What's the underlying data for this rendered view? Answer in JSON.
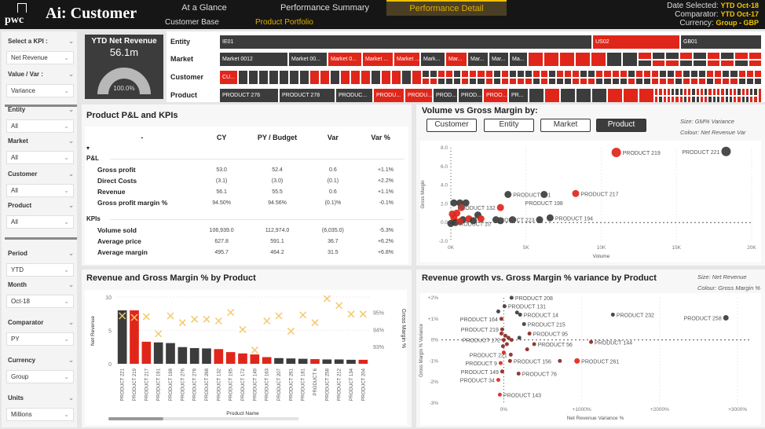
{
  "header": {
    "title": "Ai: Customer",
    "logo": "pwc",
    "tabs": [
      {
        "label": "At a Glance"
      },
      {
        "label": "Performance Summary"
      },
      {
        "label": "Performance Detail",
        "active": true
      }
    ],
    "subtabs": [
      {
        "label": "Customer Base"
      },
      {
        "label": "Product Portfolio",
        "active": true
      }
    ],
    "info": [
      {
        "label": "Date Selected:",
        "value": "YTD Oct-18"
      },
      {
        "label": "Comparator:",
        "value": "YTD Oct-17"
      },
      {
        "label": "Currency:",
        "value": "Group - GBP"
      }
    ]
  },
  "colors": {
    "dark": "#3c3c3c",
    "red": "#e0261a",
    "accent": "#f5c400",
    "marker": "#f5c96a"
  },
  "sidebar": [
    {
      "label": "Select a KPI :",
      "value": "Net Revenue"
    },
    {
      "label": "Value / Var :",
      "value": "Variance"
    },
    {
      "label": "Entity",
      "value": "All"
    },
    {
      "label": "Market",
      "value": "All"
    },
    {
      "label": "Customer",
      "value": "All"
    },
    {
      "label": "Product",
      "value": "All"
    },
    {
      "label": "Period",
      "value": "YTD"
    },
    {
      "label": "Month",
      "value": "Oct-18"
    },
    {
      "label": "Comparator",
      "value": "PY"
    },
    {
      "label": "Currency",
      "value": "Group"
    },
    {
      "label": "Units",
      "value": "Millions"
    }
  ],
  "kpi": {
    "title": "YTD Net Revenue",
    "value": "56.1m",
    "gauge_label": "100.0%",
    "gauge_fraction": 1.0
  },
  "treemap": [
    {
      "label": "Entity",
      "cells": [
        {
          "t": "IE01",
          "c": "d",
          "w": 475
        },
        {
          "t": "US02",
          "c": "r",
          "w": 108
        },
        {
          "t": "GB01",
          "c": "d",
          "w": 100
        }
      ],
      "tail": ""
    },
    {
      "label": "Market",
      "cells": [
        {
          "t": "Market 0012",
          "c": "d",
          "w": 86
        },
        {
          "t": "Market 00...",
          "c": "d",
          "w": 48
        },
        {
          "t": "Market 0...",
          "c": "r",
          "w": 42
        },
        {
          "t": "Market ...",
          "c": "r",
          "w": 38
        },
        {
          "t": "Market ...",
          "c": "r",
          "w": 32
        },
        {
          "t": "Mark...",
          "c": "d",
          "w": 30
        },
        {
          "t": "Mar...",
          "c": "r",
          "w": 26
        },
        {
          "t": "Mar...",
          "c": "d",
          "w": 25
        },
        {
          "t": "Mar...",
          "c": "d",
          "w": 24
        },
        {
          "t": "Ma...",
          "c": "d",
          "w": 22
        }
      ],
      "big": "rrrrrdd",
      "tail": "rddrdrrdddrrdrrdrr"
    },
    {
      "label": "Customer",
      "cells": [
        {
          "t": "CU...",
          "c": "r",
          "w": 22
        }
      ],
      "big": "dddddddrrdrrrdrrdr",
      "tail": "drdrrdrdddrrrdrdrrddrrdrdrdrrdrrddrdrdrrdrdrrdrdrdrddrrdrdrrdrdrrddrdrdrrdrrdrdrrdrdrd"
    },
    {
      "label": "Product",
      "cells": [
        {
          "t": "PRODUCT 276",
          "c": "d",
          "w": 74
        },
        {
          "t": "PRODUCT 278",
          "c": "d",
          "w": 70
        },
        {
          "t": "PRODUC...",
          "c": "d",
          "w": 46
        },
        {
          "t": "PRODU...",
          "c": "r",
          "w": 38
        },
        {
          "t": "PRODU...",
          "c": "r",
          "w": 34
        },
        {
          "t": "PROD...",
          "c": "d",
          "w": 30
        },
        {
          "t": "PROD...",
          "c": "d",
          "w": 30
        },
        {
          "t": "PROO...",
          "c": "r",
          "w": 30
        },
        {
          "t": "PR...",
          "c": "d",
          "w": 24
        }
      ],
      "big": "drdddrrr",
      "tail": "rrrdrrrrdrdrdrrdrrddrdrrdrrdrdrdrrddrdrrdrrdrddrdrr"
    }
  ],
  "pnl": {
    "title": "Product P&L and KPIs",
    "columns": [
      "-",
      "CY",
      "PY / Budget",
      "Var",
      "Var %"
    ],
    "sections": [
      {
        "name": "P&L",
        "rows": [
          [
            "Gross profit",
            "53.0",
            "52.4",
            "0.6",
            "+1.1%"
          ],
          [
            "Direct Costs",
            "(3.1)",
            "(3.0)",
            "(0.1)",
            "+2.2%"
          ],
          [
            "Revenue",
            "56.1",
            "55.5",
            "0.6",
            "+1.1%"
          ],
          [
            "Gross profit margin %",
            "94.50%",
            "94.56%",
            "(0.1)%",
            "-0.1%"
          ]
        ]
      },
      {
        "name": "KPIs",
        "rows": [
          [
            "Volume sold",
            "106,939.0",
            "112,974.0",
            "(6,035.0)",
            "-5.3%"
          ],
          [
            "Average price",
            "627.8",
            "591.1",
            "36.7",
            "+6.2%"
          ],
          [
            "Average margin",
            "495.7",
            "464.2",
            "31.5",
            "+6.8%"
          ]
        ]
      }
    ]
  },
  "volume_chart": {
    "title": "Volume vs Gross Margin by:",
    "buttons": [
      {
        "label": "Customer"
      },
      {
        "label": "Entity"
      },
      {
        "label": "Market"
      },
      {
        "label": "Product",
        "selected": true
      }
    ],
    "size_note": "Size: GM% Variance",
    "colour_note": "Colour: Net Revenue Var"
  },
  "growth_chart": {
    "title": "Revenue growth vs. Gross Margin % variance by Product",
    "size_note": "Size: Net Revenue",
    "colour_note": "Colour: Gross Margin %"
  },
  "bar_chart_title": "Revenue and Gross Margin % by Product",
  "chart_data": [
    {
      "type": "bar",
      "title": "Revenue and Gross Margin % by Product",
      "xlabel": "Product Name",
      "ylabel": "Net Revenue",
      "y2label": "Gross Margin %",
      "ylim": [
        0,
        10
      ],
      "yticks": [
        "0",
        "5",
        "10"
      ],
      "y2lim": [
        92,
        95.9
      ],
      "y2ticks": [
        {
          "v": 93,
          "t": "93%"
        },
        {
          "v": 94,
          "t": "94%"
        },
        {
          "v": 95,
          "t": "95%"
        }
      ],
      "categories": [
        "PRODUCT 221",
        "PRODUCT 219",
        "PRODUCT 217",
        "PRODUCT 191",
        "PRODUCT 198",
        "PRODUCT 276",
        "PRODUCT 278",
        "PRODUCT 268",
        "PRODUCT 132",
        "PRODUCT 195",
        "PRODUCT 172",
        "PRODUCT 149",
        "PRODUCT 163",
        "PRODUCT 207",
        "PRODUCT 261",
        "PRODUCT 181",
        "PRODUCT 6",
        "PRODUCT 258",
        "PRODUCT 212",
        "PRODUCT 134",
        "PRODUCT 204"
      ],
      "series": [
        {
          "type": "bar",
          "values": [
            8.0,
            8.0,
            3.3,
            3.2,
            3.1,
            2.5,
            2.35,
            2.3,
            2.2,
            1.75,
            1.55,
            1.4,
            1.0,
            0.85,
            0.8,
            0.75,
            0.7,
            0.65,
            0.65,
            0.6,
            0.6
          ],
          "colors": "drrdddddrrrrrdddrdddr"
        },
        {
          "type": "marker",
          "axis": "y2",
          "values": [
            94.8,
            94.7,
            94.75,
            93.75,
            94.8,
            94.4,
            94.6,
            94.6,
            94.5,
            95.0,
            94.0,
            92.8,
            94.5,
            94.8,
            93.9,
            94.85,
            94.4,
            95.8,
            95.4,
            94.9,
            94.9
          ]
        }
      ]
    },
    {
      "type": "scatter",
      "xlabel": "Volume",
      "ylabel": "Gross Margin",
      "xlim": [
        0,
        20000
      ],
      "ylim": [
        -2,
        8
      ],
      "xticks": [
        {
          "v": 0,
          "t": "0K"
        },
        {
          "v": 5000,
          "t": "5K"
        },
        {
          "v": 10000,
          "t": "10K"
        },
        {
          "v": 15000,
          "t": "15K"
        },
        {
          "v": 20000,
          "t": "20K"
        }
      ],
      "yticks": [
        {
          "v": -2,
          "t": "-2.0"
        },
        {
          "v": 0,
          "t": "0.0"
        },
        {
          "v": 2,
          "t": "2.0"
        },
        {
          "v": 4,
          "t": "4.0"
        },
        {
          "v": 6,
          "t": "6.0"
        },
        {
          "v": 8,
          "t": "8.0"
        }
      ],
      "points": [
        {
          "x": 11000,
          "y": 7.5,
          "c": "r",
          "label": "PRODUCT 219"
        },
        {
          "x": 18300,
          "y": 7.6,
          "c": "d",
          "label": "PRODUCT 221"
        },
        {
          "x": 3800,
          "y": 3.0,
          "c": "d",
          "label": "PRODUCT 191"
        },
        {
          "x": 6200,
          "y": 3.0,
          "c": "d",
          "label": "PRODUCT 198"
        },
        {
          "x": 8300,
          "y": 3.1,
          "c": "r",
          "label": "PRODUCT 217"
        },
        {
          "x": 3300,
          "y": 1.6,
          "c": "r",
          "label": "PRODUCT 132"
        },
        {
          "x": 6600,
          "y": 0.5,
          "c": "d",
          "label": "PRODUCT 194"
        },
        {
          "x": 5900,
          "y": 0.3,
          "c": "d",
          "label": "PRODUCT 223"
        },
        {
          "x": 0,
          "y": -0.1,
          "c": "d",
          "label": "PRODUCT 10"
        },
        {
          "x": 4100,
          "y": 0.3,
          "c": "d"
        },
        {
          "x": 3000,
          "y": 0.3,
          "c": "d"
        },
        {
          "x": 3300,
          "y": 0.2,
          "c": "d"
        },
        {
          "x": 200,
          "y": 2.1,
          "c": "d"
        },
        {
          "x": 600,
          "y": 2.1,
          "c": "d"
        },
        {
          "x": 1000,
          "y": 2.1,
          "c": "d"
        },
        {
          "x": 700,
          "y": 1.6,
          "c": "r"
        },
        {
          "x": 400,
          "y": 1.0,
          "c": "r"
        },
        {
          "x": 1800,
          "y": 0.8,
          "c": "d"
        },
        {
          "x": 2000,
          "y": 0.4,
          "c": "r"
        },
        {
          "x": 200,
          "y": 0.5,
          "c": "r"
        },
        {
          "x": 800,
          "y": 0.3,
          "c": "d"
        },
        {
          "x": 1200,
          "y": 0.4,
          "c": "r"
        },
        {
          "x": 300,
          "y": 0.0,
          "c": "d"
        },
        {
          "x": 600,
          "y": 0.1,
          "c": "r"
        },
        {
          "x": 1500,
          "y": 0.2,
          "c": "d"
        },
        {
          "x": 100,
          "y": 0.9,
          "c": "r"
        }
      ]
    },
    {
      "type": "scatter",
      "xlabel": "Net Revenue Variance %",
      "ylabel": "Gross Margin % Variance",
      "xlim": [
        -800,
        3150
      ],
      "ylim": [
        -3,
        2
      ],
      "xticks": [
        {
          "v": 0,
          "t": "0%"
        },
        {
          "v": 1000,
          "t": "+1000%"
        },
        {
          "v": 2000,
          "t": "+2000%"
        },
        {
          "v": 3000,
          "t": "+3000%"
        }
      ],
      "yticks": [
        {
          "v": -3,
          "t": "-3%"
        },
        {
          "v": -2,
          "t": "-2%"
        },
        {
          "v": -1,
          "t": "-1%"
        },
        {
          "v": 0,
          "t": "0%"
        },
        {
          "v": 1,
          "t": "+1%"
        },
        {
          "v": 2,
          "t": "+2%"
        }
      ],
      "points": [
        {
          "x": 2850,
          "y": 1.05,
          "c": "d",
          "label": "PRODUCT 258"
        },
        {
          "x": 1400,
          "y": 1.2,
          "c": "d",
          "label": "PRODUCT 232"
        },
        {
          "x": 1120,
          "y": -0.1,
          "c": "m",
          "label": "PRODUCT 144"
        },
        {
          "x": 940,
          "y": -1.0,
          "c": "r",
          "label": "PRODUCT 261"
        },
        {
          "x": 720,
          "y": -1.0,
          "c": "m"
        },
        {
          "x": 390,
          "y": -0.2,
          "c": "m",
          "label": "PRODUCT 56"
        },
        {
          "x": 300,
          "y": -0.45,
          "c": "m"
        },
        {
          "x": 330,
          "y": 0.3,
          "c": "m",
          "label": "PRODUCT 95"
        },
        {
          "x": 260,
          "y": 0.75,
          "c": "d",
          "label": "PRODUCT 215"
        },
        {
          "x": 210,
          "y": 1.2,
          "c": "d",
          "label": "PRODUCT 14"
        },
        {
          "x": 170,
          "y": 1.3,
          "c": "d"
        },
        {
          "x": 100,
          "y": 2.0,
          "c": "d",
          "label": "PRODUCT 208"
        },
        {
          "x": 190,
          "y": -1.6,
          "c": "m",
          "label": "PRODUCT 76"
        },
        {
          "x": 80,
          "y": -1.0,
          "c": "m",
          "label": "PRODUCT 156"
        },
        {
          "x": 90,
          "y": -0.7,
          "c": "m",
          "label": "PRODUCT 221"
        },
        {
          "x": 10,
          "y": 1.6,
          "c": "d",
          "label": "PRODUCT 131"
        },
        {
          "x": -30,
          "y": 1.0,
          "c": "m",
          "label": "PRODUCT 164"
        },
        {
          "x": -20,
          "y": 0.5,
          "c": "m",
          "label": "PRODUCT 219"
        },
        {
          "x": 0,
          "y": 0.0,
          "c": "m",
          "label": "PRODUCT 172"
        },
        {
          "x": -50,
          "y": -2.6,
          "c": "r",
          "label": "PRODUCT 143"
        },
        {
          "x": -70,
          "y": -1.9,
          "c": "r",
          "label": "PRODUCT 34"
        },
        {
          "x": -20,
          "y": -1.5,
          "c": "m",
          "label": "PRODUCT 149"
        },
        {
          "x": -40,
          "y": -1.1,
          "c": "r",
          "label": "PRODUCT 9"
        },
        {
          "x": -70,
          "y": 1.35,
          "c": "d"
        },
        {
          "x": 20,
          "y": 0.2,
          "c": "m"
        },
        {
          "x": 60,
          "y": 0.1,
          "c": "m"
        },
        {
          "x": -10,
          "y": -0.3,
          "c": "m"
        },
        {
          "x": 40,
          "y": -0.2,
          "c": "m"
        },
        {
          "x": -30,
          "y": 0.3,
          "c": "m"
        },
        {
          "x": 100,
          "y": 0.0,
          "c": "m"
        },
        {
          "x": 0,
          "y": -0.6,
          "c": "r"
        },
        {
          "x": 200,
          "y": 0.1,
          "c": "d"
        }
      ]
    }
  ]
}
